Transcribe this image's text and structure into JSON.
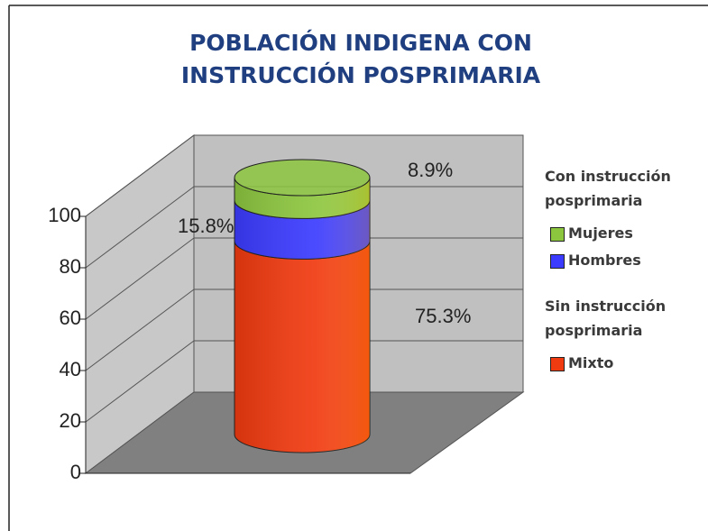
{
  "chart_data": {
    "type": "bar",
    "title": "POBLACIÓN INDIGENA CON INSTRUCCIÓN POSPRIMARIA",
    "stacked": true,
    "ylim": [
      0,
      100
    ],
    "yticks": [
      0,
      20,
      40,
      60,
      80,
      100
    ],
    "grid": true,
    "legend": "right",
    "groups": [
      {
        "title": "Con instrucción posprimaria",
        "series": [
          {
            "name": "Mujeres",
            "color": "#8cc63f",
            "values": [
              8.9
            ],
            "value_labels": [
              "8.9%"
            ]
          },
          {
            "name": "Hombres",
            "color": "#3b3bff",
            "values": [
              15.8
            ],
            "value_labels": [
              "15.8%"
            ]
          }
        ]
      },
      {
        "title": "Sin instrucción posprimaria",
        "series": [
          {
            "name": "Mixto",
            "color": "#f03a10",
            "values": [
              75.3
            ],
            "value_labels": [
              "75.3%"
            ]
          }
        ]
      }
    ]
  }
}
